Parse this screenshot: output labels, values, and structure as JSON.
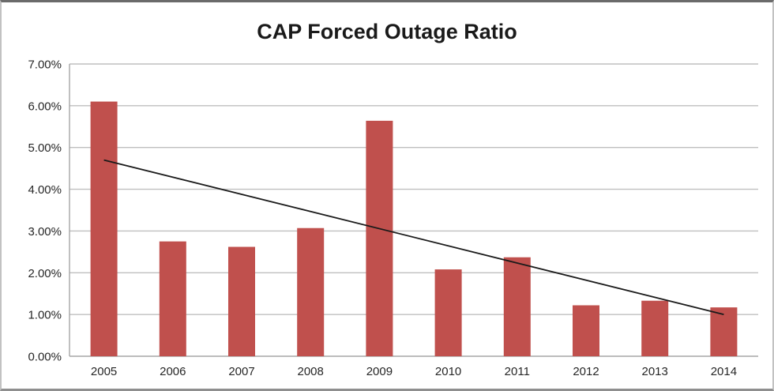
{
  "chart_data": {
    "type": "bar",
    "title": "CAP Forced Outage Ratio",
    "categories": [
      "2005",
      "2006",
      "2007",
      "2008",
      "2009",
      "2010",
      "2011",
      "2012",
      "2013",
      "2014"
    ],
    "series": [
      {
        "name": "CAP Forced Outage Ratio",
        "values": [
          6.1,
          2.75,
          2.62,
          3.07,
          5.64,
          2.08,
          2.37,
          1.22,
          1.33,
          1.17
        ]
      }
    ],
    "trendline": {
      "start_value": 4.7,
      "end_value": 1.0,
      "color": "#1a1a1a"
    },
    "xlabel": "",
    "ylabel": "",
    "ylim": [
      0,
      7
    ],
    "ytick_step": 1,
    "ytick_labels": [
      "0.00%",
      "1.00%",
      "2.00%",
      "3.00%",
      "4.00%",
      "5.00%",
      "6.00%",
      "7.00%"
    ],
    "grid": true,
    "legend_position": "none",
    "bar_color": "#C0504D",
    "gridline_color": "#BFBFBF",
    "axis_color": "#A6A6A6",
    "tick_label_color": "#262626",
    "title_color": "#1a1a1a",
    "background_color": "#ffffff"
  }
}
